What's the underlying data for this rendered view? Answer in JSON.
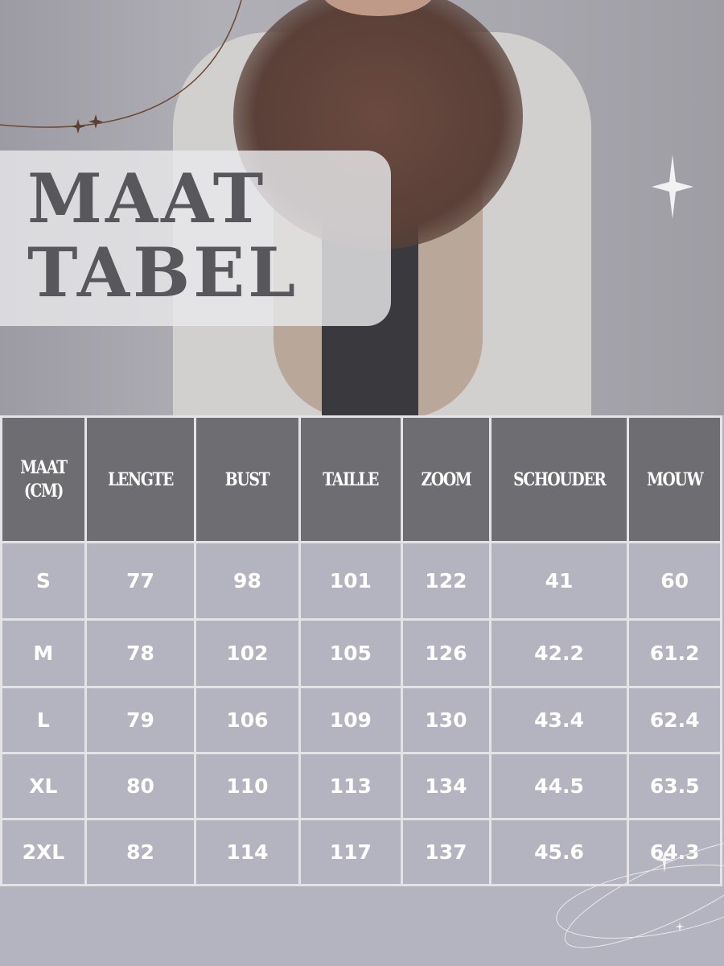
{
  "title": {
    "line1": "MAAT",
    "line2": "TABEL"
  },
  "table": {
    "headers": [
      "MAAT (CM)",
      "LENGTE",
      "BUST",
      "TAILLE",
      "ZOOM",
      "SCHOUDER",
      "MOUW"
    ],
    "rows": [
      [
        "S",
        "77",
        "98",
        "101",
        "122",
        "41",
        "60"
      ],
      [
        "M",
        "78",
        "102",
        "105",
        "126",
        "42.2",
        "61.2"
      ],
      [
        "L",
        "79",
        "106",
        "109",
        "130",
        "43.4",
        "62.4"
      ],
      [
        "XL",
        "80",
        "110",
        "113",
        "134",
        "44.5",
        "63.5"
      ],
      [
        "2XL",
        "82",
        "114",
        "117",
        "137",
        "45.6",
        "64.3"
      ]
    ]
  },
  "colors": {
    "background": "#b4b3c0",
    "header": "#6e6d72",
    "title_text": "#58575c",
    "grid": "#e4e4e6"
  }
}
